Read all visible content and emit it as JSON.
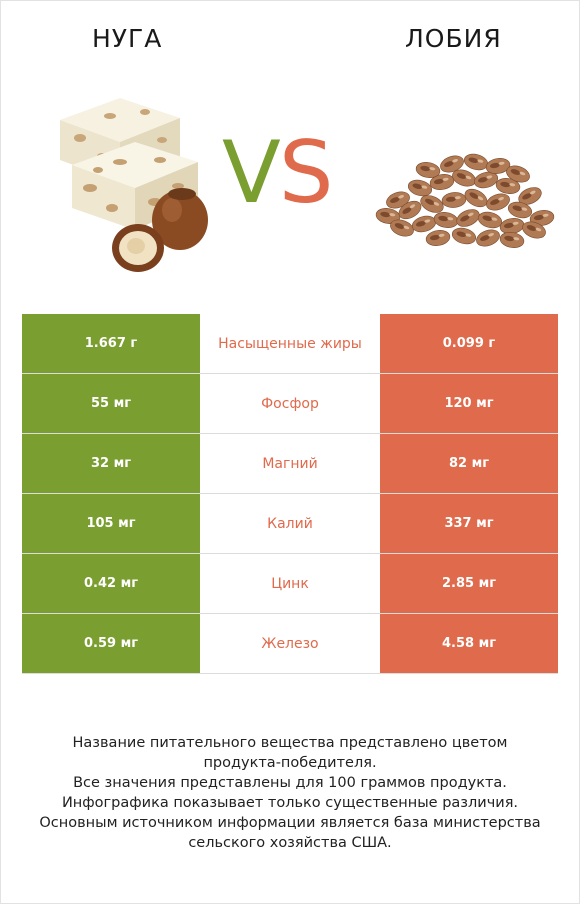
{
  "header": {
    "left_title": "НУГА",
    "right_title": "ЛОБИЯ",
    "vs_v": "V",
    "vs_s": "S"
  },
  "colors": {
    "left_accent": "#7a9e2f",
    "right_accent": "#e06a4c"
  },
  "images": {
    "left": "nougat-with-hazelnuts-image",
    "right": "pinto-beans-image"
  },
  "rows": [
    {
      "left": "1.667 г",
      "nutrient": "Насыщенные жиры",
      "right": "0.099 г",
      "winner": "right"
    },
    {
      "left": "55 мг",
      "nutrient": "Фосфор",
      "right": "120 мг",
      "winner": "right"
    },
    {
      "left": "32 мг",
      "nutrient": "Магний",
      "right": "82 мг",
      "winner": "right"
    },
    {
      "left": "105 мг",
      "nutrient": "Калий",
      "right": "337 мг",
      "winner": "right"
    },
    {
      "left": "0.42 мг",
      "nutrient": "Цинк",
      "right": "2.85 мг",
      "winner": "right"
    },
    {
      "left": "0.59 мг",
      "nutrient": "Железо",
      "right": "4.58 мг",
      "winner": "right"
    }
  ],
  "footer": {
    "lines": [
      "Название питательного вещества представлено цветом",
      "продукта-победителя.",
      "Все значения представлены для 100 граммов продукта.",
      "Инфографика показывает только существенные различия.",
      "Основным источником информации является база министерства",
      "сельского хозяйства США."
    ]
  }
}
